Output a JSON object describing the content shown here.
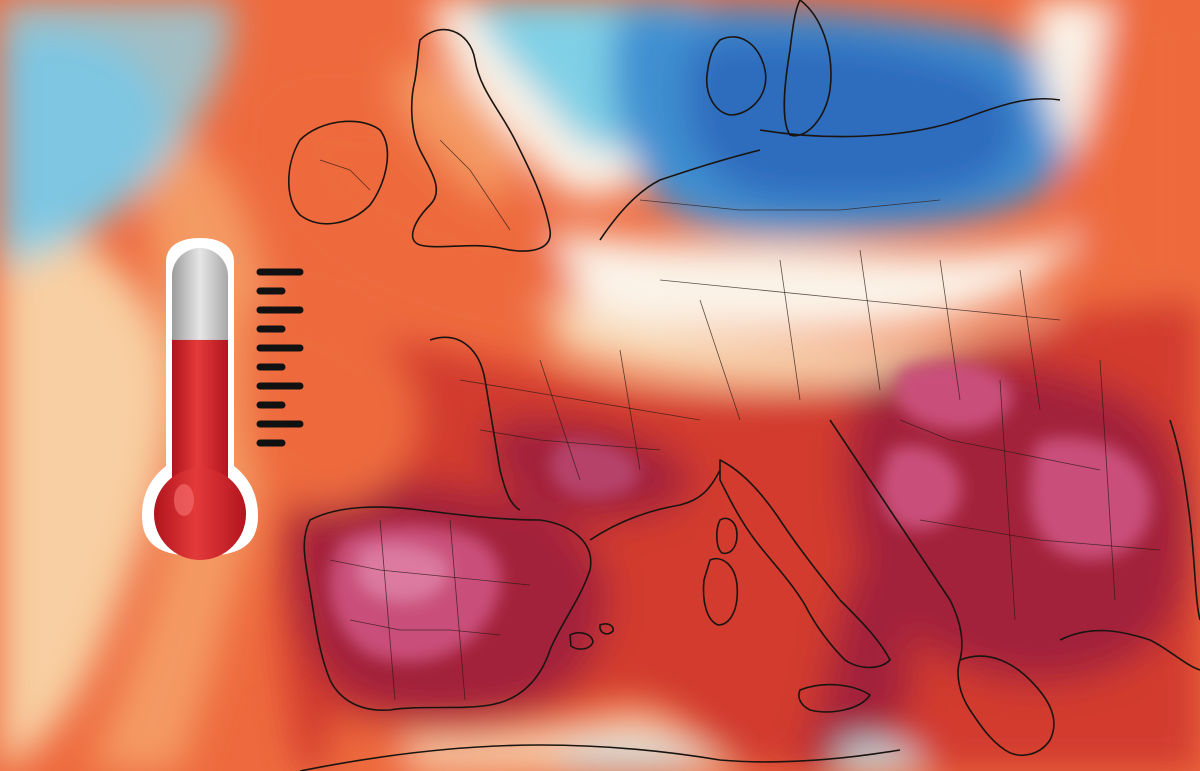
{
  "map": {
    "type": "temperature-anomaly-map",
    "region": "Europe",
    "legend": "none",
    "colors": {
      "extreme_hot": "#c94f7a",
      "very_hot": "#a3243a",
      "hot": "#d23a2e",
      "warm": "#ee6a3e",
      "mild_warm": "#f49a63",
      "neutral": "#f7d7b2",
      "near_normal": "#fbf3e8",
      "cool": "#7fd0e6",
      "cold": "#3f8fd1",
      "very_cold": "#2d6cbd"
    }
  },
  "thermometer": {
    "icon": "thermometer-icon",
    "fill_level": 0.62,
    "colors": {
      "mercury": "#d9262f",
      "tube": "#b9b9b9",
      "outline": "#ffffff",
      "ticks": "#111111"
    }
  }
}
